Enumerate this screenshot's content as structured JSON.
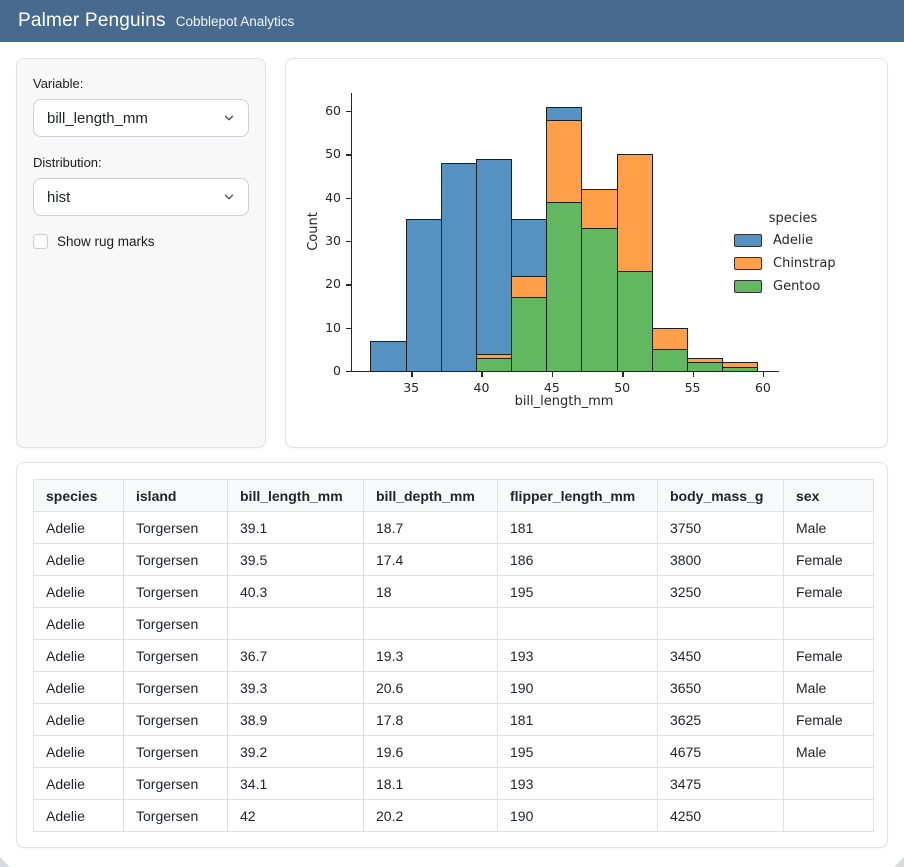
{
  "header": {
    "title": "Palmer Penguins",
    "subtitle": "Cobblepot Analytics"
  },
  "sidebar": {
    "variable_label": "Variable:",
    "variable_value": "bill_length_mm",
    "distribution_label": "Distribution:",
    "distribution_value": "hist",
    "rug_label": "Show rug marks",
    "rug_checked": false
  },
  "chart_data": {
    "type": "bar",
    "subtype": "stacked-histogram",
    "title": "",
    "xlabel": "bill_length_mm",
    "ylabel": "Count",
    "bin_start": 32.1,
    "bin_width": 2.5,
    "bin_count": 11,
    "x_ticks": [
      35,
      40,
      45,
      50,
      55,
      60
    ],
    "y_ticks": [
      0,
      10,
      20,
      30,
      40,
      50,
      60
    ],
    "xlim": [
      30.725,
      60.975
    ],
    "ylim": [
      0,
      64.05
    ],
    "grid": false,
    "legend_position": "center-right",
    "legend_title": "species",
    "series": [
      {
        "name": "Gentoo",
        "color": "#61b861",
        "values": [
          0,
          0,
          0,
          3,
          17,
          39,
          33,
          23,
          5,
          2,
          1
        ]
      },
      {
        "name": "Chinstrap",
        "color": "#ff9f4a",
        "values": [
          0,
          0,
          0,
          1,
          5,
          19,
          9,
          27,
          5,
          1,
          1
        ]
      },
      {
        "name": "Adelie",
        "color": "#5592c2",
        "values": [
          7,
          35,
          48,
          45,
          13,
          3,
          0,
          0,
          0,
          0,
          0
        ]
      }
    ],
    "bin_totals": [
      7,
      35,
      48,
      49,
      35,
      61,
      42,
      50,
      10,
      3,
      2
    ],
    "legend_entries": [
      {
        "label": "Adelie",
        "color": "#5592c2"
      },
      {
        "label": "Chinstrap",
        "color": "#ff9f4a"
      },
      {
        "label": "Gentoo",
        "color": "#61b861"
      }
    ]
  },
  "table": {
    "columns": [
      "species",
      "island",
      "bill_length_mm",
      "bill_depth_mm",
      "flipper_length_mm",
      "body_mass_g",
      "sex"
    ],
    "rows": [
      [
        "Adelie",
        "Torgersen",
        "39.1",
        "18.7",
        "181",
        "3750",
        "Male"
      ],
      [
        "Adelie",
        "Torgersen",
        "39.5",
        "17.4",
        "186",
        "3800",
        "Female"
      ],
      [
        "Adelie",
        "Torgersen",
        "40.3",
        "18",
        "195",
        "3250",
        "Female"
      ],
      [
        "Adelie",
        "Torgersen",
        "",
        "",
        "",
        "",
        ""
      ],
      [
        "Adelie",
        "Torgersen",
        "36.7",
        "19.3",
        "193",
        "3450",
        "Female"
      ],
      [
        "Adelie",
        "Torgersen",
        "39.3",
        "20.6",
        "190",
        "3650",
        "Male"
      ],
      [
        "Adelie",
        "Torgersen",
        "38.9",
        "17.8",
        "181",
        "3625",
        "Female"
      ],
      [
        "Adelie",
        "Torgersen",
        "39.2",
        "19.6",
        "195",
        "4675",
        "Male"
      ],
      [
        "Adelie",
        "Torgersen",
        "34.1",
        "18.1",
        "193",
        "3475",
        ""
      ],
      [
        "Adelie",
        "Torgersen",
        "42",
        "20.2",
        "190",
        "4250",
        ""
      ]
    ]
  },
  "colors": {
    "header_bg": "#486a8f",
    "sidebar_bg": "#f8f8f8",
    "axis": "#262626",
    "table_border": "#dee2e6",
    "table_header_bg": "#f8f9fa"
  }
}
